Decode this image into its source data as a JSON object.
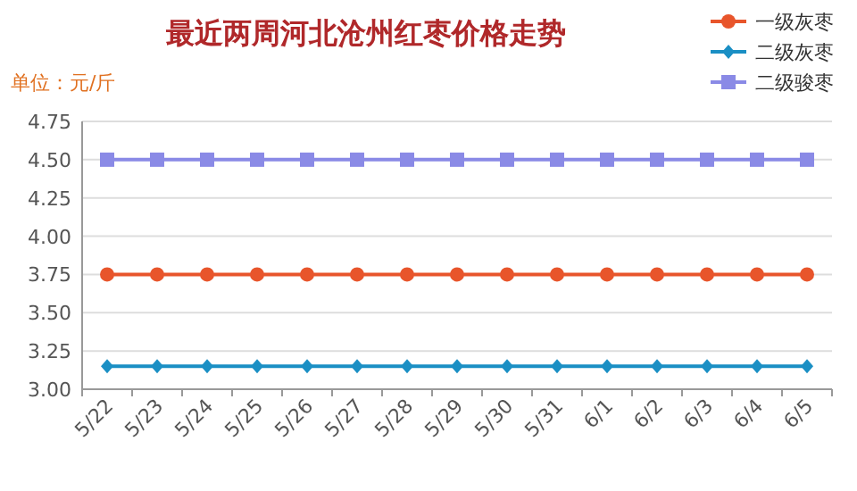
{
  "chart_data": {
    "type": "line",
    "title": "最近两周河北沧州红枣价格走势",
    "annotations": [
      "单位：元/斤"
    ],
    "categories": [
      "5/22",
      "5/23",
      "5/24",
      "5/25",
      "5/26",
      "5/27",
      "5/28",
      "5/29",
      "5/30",
      "5/31",
      "6/1",
      "6/2",
      "6/3",
      "6/4",
      "6/5"
    ],
    "series": [
      {
        "name": "一级灰枣",
        "color": "#e8552b",
        "marker": "circle",
        "values": [
          3.75,
          3.75,
          3.75,
          3.75,
          3.75,
          3.75,
          3.75,
          3.75,
          3.75,
          3.75,
          3.75,
          3.75,
          3.75,
          3.75,
          3.75
        ]
      },
      {
        "name": "二级灰枣",
        "color": "#1a8fc4",
        "marker": "diamond",
        "values": [
          3.15,
          3.15,
          3.15,
          3.15,
          3.15,
          3.15,
          3.15,
          3.15,
          3.15,
          3.15,
          3.15,
          3.15,
          3.15,
          3.15,
          3.15
        ]
      },
      {
        "name": "二级骏枣",
        "color": "#8a8ae6",
        "marker": "square",
        "values": [
          4.5,
          4.5,
          4.5,
          4.5,
          4.5,
          4.5,
          4.5,
          4.5,
          4.5,
          4.5,
          4.5,
          4.5,
          4.5,
          4.5,
          4.5
        ]
      }
    ],
    "ylim": [
      3.0,
      4.75
    ],
    "yticks": [
      {
        "value": 3.0,
        "label": "3.00"
      },
      {
        "value": 3.25,
        "label": "3.25"
      },
      {
        "value": 3.5,
        "label": "3.50"
      },
      {
        "value": 3.75,
        "label": "3.75"
      },
      {
        "value": 4.0,
        "label": "4.00"
      },
      {
        "value": 4.25,
        "label": "4.25"
      },
      {
        "value": 4.5,
        "label": "4.50"
      },
      {
        "value": 4.75,
        "label": "4.75"
      }
    ],
    "grid": "y",
    "legend": "top right",
    "line_style": "solid"
  }
}
